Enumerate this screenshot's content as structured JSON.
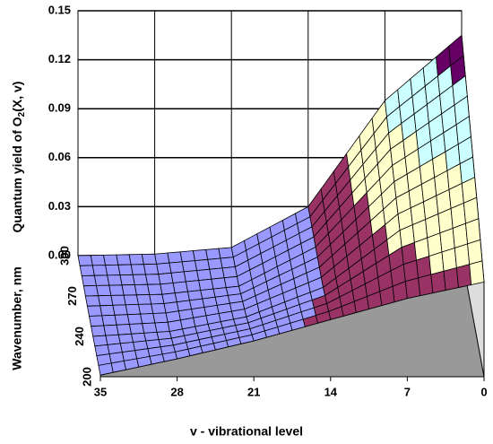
{
  "chart_data": {
    "type": "surface",
    "y_label": {
      "before": "Quantum yield of O",
      "sub": "2",
      "after": "(X, v)"
    },
    "x_label": "v - vibrational level",
    "z_label": "Wavenumber, nm",
    "x": [
      35,
      28,
      21,
      14,
      7,
      0
    ],
    "xlim": [
      35,
      0
    ],
    "xticks": [
      35,
      28,
      21,
      14,
      7,
      0
    ],
    "z": [
      200,
      240,
      270,
      300
    ],
    "values": [
      [
        0.001,
        0.011,
        0.022,
        0.035,
        0.048,
        0.058
      ],
      [
        0,
        0.003,
        0.012,
        0.03,
        0.065,
        0.085
      ],
      [
        0,
        0.001,
        0.006,
        0.03,
        0.08,
        0.11
      ],
      [
        0,
        0.001,
        0.005,
        0.03,
        0.095,
        0.135
      ]
    ],
    "ylim": [
      0,
      0.15
    ],
    "yticks": [
      {
        "value": 0,
        "label": "0.00"
      },
      0.03,
      0.06,
      0.09,
      0.12,
      0.15
    ],
    "band_colors": [
      "#9999ff",
      "#993366",
      "#ffffcc",
      "#ccffff",
      "#660066"
    ],
    "grid": true
  }
}
